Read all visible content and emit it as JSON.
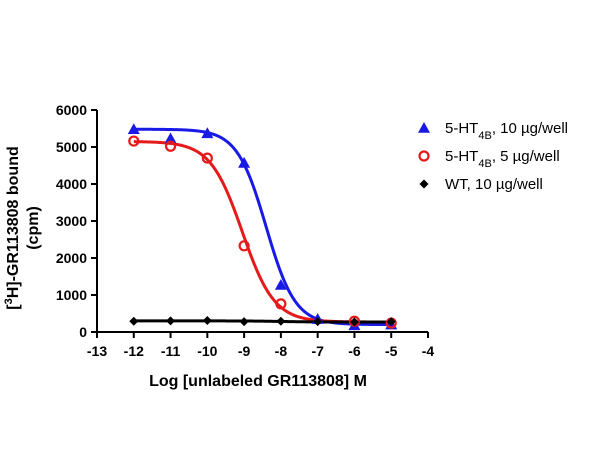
{
  "chart_data": {
    "type": "scatter",
    "xlabel": "Log [unlabeled GR113808] M",
    "ylabel_line1_pre": "[",
    "ylabel_line1_sup": "3",
    "ylabel_line1_post": "H]-GR113808 bound",
    "ylabel_line2": "(cpm)",
    "xlim": [
      -13,
      -4
    ],
    "ylim": [
      0,
      6000
    ],
    "xticks": [
      -13,
      -12,
      -11,
      -10,
      -9,
      -8,
      -7,
      -6,
      -5,
      -4
    ],
    "yticks": [
      0,
      1000,
      2000,
      3000,
      4000,
      5000,
      6000
    ],
    "grid": false,
    "legend_position": "right",
    "series": [
      {
        "name_main": "5-HT",
        "name_sub": "4B",
        "name_rest": ", 10 µg/well",
        "color": "#1a1ae6",
        "marker": "triangle",
        "x": [
          -12,
          -11,
          -10,
          -9,
          -8,
          -7,
          -6,
          -5
        ],
        "y": [
          5480,
          5230,
          5370,
          4570,
          1270,
          350,
          180,
          200
        ],
        "fit": {
          "top": 5480,
          "bottom": 200,
          "logIC50": -8.4,
          "hill": 1.1
        }
      },
      {
        "name_main": "5-HT",
        "name_sub": "4B",
        "name_rest": ", 5 µg/well",
        "color": "#e61a1a",
        "marker": "open-circle",
        "x": [
          -12,
          -11,
          -10,
          -9,
          -8,
          -6,
          -5
        ],
        "y": [
          5160,
          5020,
          4700,
          2330,
          760,
          290,
          240
        ],
        "fit": {
          "top": 5150,
          "bottom": 270,
          "logIC50": -9.05,
          "hill": 1.0
        }
      },
      {
        "name_main": "WT, 10 µg/well",
        "name_sub": "",
        "name_rest": "",
        "color": "#000000",
        "marker": "diamond",
        "x": [
          -12,
          -11,
          -10,
          -9,
          -8,
          -7,
          -6,
          -5
        ],
        "y": [
          290,
          300,
          310,
          280,
          290,
          280,
          270,
          280
        ],
        "fit": {
          "top": 300,
          "bottom": 270,
          "logIC50": -8,
          "hill": 1.0
        }
      }
    ]
  }
}
